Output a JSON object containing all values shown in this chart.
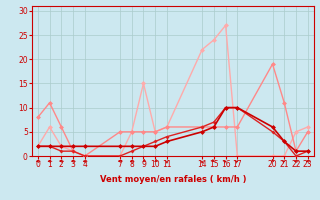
{
  "xlabel": "Vent moyen/en rafales ( km/h )",
  "background_color": "#cce8f0",
  "grid_color": "#aacccc",
  "xlim": [
    -0.5,
    23.5
  ],
  "ylim": [
    0,
    31
  ],
  "yticks": [
    0,
    5,
    10,
    15,
    20,
    25,
    30
  ],
  "xticks": [
    0,
    1,
    2,
    3,
    4,
    7,
    8,
    9,
    10,
    11,
    14,
    15,
    16,
    17,
    20,
    21,
    22,
    23
  ],
  "series": [
    {
      "name": "dark_red_1",
      "x": [
        0,
        1,
        2,
        3,
        4,
        7,
        8,
        9,
        10,
        11,
        14,
        15,
        16,
        17,
        20,
        21,
        22,
        23
      ],
      "y": [
        2,
        2,
        2,
        2,
        2,
        2,
        2,
        2,
        2,
        3,
        5,
        6,
        10,
        10,
        6,
        3,
        1,
        1
      ],
      "color": "#cc0000",
      "lw": 1.2,
      "ms": 2.5,
      "zorder": 5
    },
    {
      "name": "dark_red_2",
      "x": [
        0,
        1,
        2,
        3,
        4,
        7,
        8,
        9,
        10,
        11,
        14,
        15,
        16,
        17,
        20,
        21,
        22,
        23
      ],
      "y": [
        2,
        2,
        1,
        1,
        0,
        0,
        1,
        2,
        3,
        4,
        6,
        7,
        10,
        10,
        5,
        3,
        0,
        1
      ],
      "color": "#dd2222",
      "lw": 1.0,
      "ms": 2.0,
      "zorder": 4
    },
    {
      "name": "pink_1",
      "x": [
        0,
        1,
        2,
        3,
        4,
        7,
        8,
        9,
        10,
        11,
        14,
        15,
        16,
        17,
        20,
        21,
        22,
        23
      ],
      "y": [
        8,
        11,
        6,
        1,
        0,
        5,
        5,
        5,
        5,
        6,
        6,
        6,
        6,
        6,
        19,
        11,
        1,
        5
      ],
      "color": "#ff8888",
      "lw": 1.0,
      "ms": 2.5,
      "zorder": 3
    },
    {
      "name": "pink_2",
      "x": [
        0,
        1,
        2,
        3,
        4,
        7,
        8,
        9,
        10,
        11,
        14,
        15,
        16,
        17,
        20,
        21,
        22,
        23
      ],
      "y": [
        2,
        6,
        2,
        1,
        0,
        0,
        5,
        15,
        5,
        6,
        22,
        24,
        27,
        0,
        0,
        0,
        5,
        6
      ],
      "color": "#ffaaaa",
      "lw": 1.0,
      "ms": 2.5,
      "zorder": 2
    }
  ],
  "arrow_directions": {
    "x": [
      0,
      1,
      2,
      3,
      4,
      7,
      8,
      9,
      10,
      11,
      14,
      15,
      16,
      17,
      20,
      21,
      22,
      23
    ],
    "dx": [
      -1,
      -1,
      -1,
      -1,
      -1,
      -1,
      -1,
      -0.7,
      -0.7,
      0,
      0,
      0.7,
      0.7,
      0.7,
      0,
      0.7,
      -1,
      -1
    ],
    "dy": [
      0,
      0,
      0,
      0,
      0,
      0,
      0,
      -0.7,
      -0.7,
      -1,
      -1,
      -0.7,
      0.7,
      0.7,
      1,
      0.7,
      0,
      0
    ]
  },
  "arrow_color": "#cc0000",
  "xlabel_color": "#cc0000",
  "xlabel_fontsize": 6,
  "tick_color": "#cc0000",
  "tick_fontsize": 5.5,
  "spine_color": "#cc0000"
}
